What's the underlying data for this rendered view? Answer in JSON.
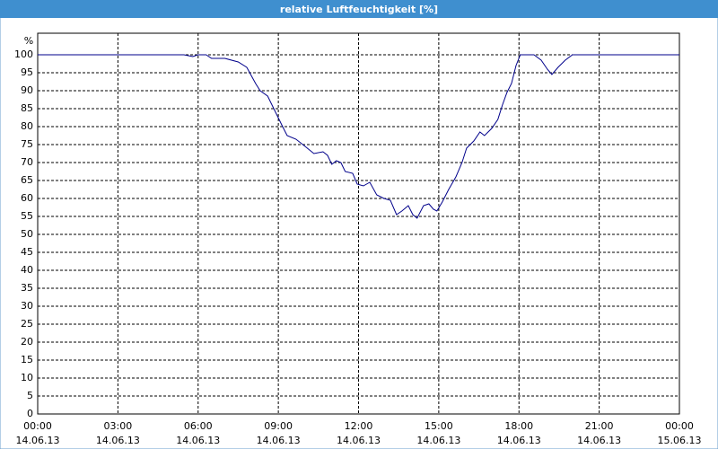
{
  "chart_data": {
    "type": "line",
    "title": "relative Luftfeuchtigkeit [%]",
    "ylabel": "%",
    "xlim": [
      0,
      24
    ],
    "ylim": [
      0,
      106
    ],
    "yticks": [
      0,
      5,
      10,
      15,
      20,
      25,
      30,
      35,
      40,
      45,
      50,
      55,
      60,
      65,
      70,
      75,
      80,
      85,
      90,
      95,
      100
    ],
    "xticks": [
      {
        "value": 0,
        "label": "00:00"
      },
      {
        "value": 3,
        "label": "03:00"
      },
      {
        "value": 6,
        "label": "06:00"
      },
      {
        "value": 9,
        "label": "09:00"
      },
      {
        "value": 12,
        "label": "12:00"
      },
      {
        "value": 15,
        "label": "15:00"
      },
      {
        "value": 18,
        "label": "18:00"
      },
      {
        "value": 21,
        "label": "21:00"
      },
      {
        "value": 24,
        "label": "00:00"
      }
    ],
    "xtick_dates": [
      "14.06.13",
      "14.06.13",
      "14.06.13",
      "14.06.13",
      "14.06.13",
      "14.06.13",
      "14.06.13",
      "14.06.13",
      "15.06.13"
    ],
    "grid": true,
    "series": [
      {
        "color": "#00008b",
        "x": [
          0,
          5.47,
          5.8,
          6.0,
          6.3,
          6.5,
          7.0,
          7.5,
          7.82,
          8.15,
          8.32,
          8.6,
          8.83,
          9.16,
          9.33,
          9.66,
          10.0,
          10.33,
          10.67,
          10.84,
          11.0,
          11.17,
          11.34,
          11.5,
          11.78,
          11.95,
          12.18,
          12.42,
          12.68,
          12.95,
          13.19,
          13.42,
          13.62,
          13.86,
          14.03,
          14.19,
          14.43,
          14.63,
          14.8,
          14.93,
          15.13,
          15.37,
          15.64,
          15.87,
          16.04,
          16.31,
          16.54,
          16.71,
          16.98,
          17.21,
          17.38,
          17.55,
          17.72,
          17.89,
          18.05,
          18.56,
          18.83,
          19.06,
          19.23,
          19.46,
          19.73,
          20.0,
          24
        ],
        "values": [
          100,
          100,
          99.5,
          100,
          100,
          99,
          99,
          98,
          96.5,
          92,
          90,
          88.5,
          85,
          80,
          77.5,
          76.5,
          74.5,
          72.5,
          73,
          72,
          69.5,
          70.5,
          70,
          67.5,
          67,
          64,
          63.5,
          64.5,
          61,
          60,
          59.5,
          55.5,
          56.5,
          58,
          55.5,
          54.5,
          58,
          58.5,
          57,
          56.5,
          59,
          62.5,
          66,
          70,
          74,
          76,
          78.5,
          77.5,
          79.5,
          82,
          86,
          89.5,
          92,
          97,
          100,
          100,
          98.5,
          96,
          94.5,
          96.5,
          98.5,
          100,
          100
        ]
      }
    ]
  }
}
